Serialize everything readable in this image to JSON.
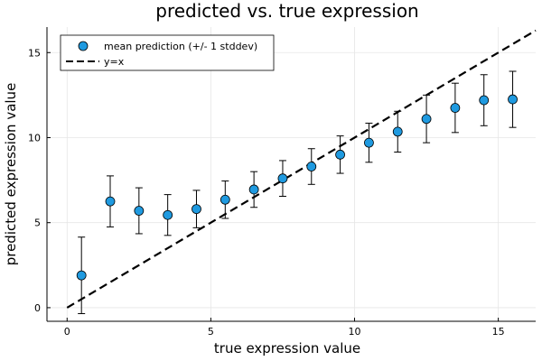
{
  "chart_data": {
    "type": "scatter",
    "title": "predicted vs. true expression",
    "xlabel": "true expression value",
    "ylabel": "predicted expression value",
    "xlim": [
      -0.7,
      16.3
    ],
    "ylim": [
      -0.8,
      16.5
    ],
    "xticks": [
      "0",
      "5",
      "10",
      "15"
    ],
    "yticks": [
      "0",
      "5",
      "10",
      "15"
    ],
    "grid": true,
    "legend_position": "top-left",
    "colors": {
      "points": "#1f9ae0",
      "reference_line": "#000000"
    },
    "series": [
      {
        "name": "mean prediction (+/- 1 stddev)",
        "kind": "scatter-errorbar",
        "x": [
          0.5,
          1.5,
          2.5,
          3.5,
          4.5,
          5.5,
          6.5,
          7.5,
          8.5,
          9.5,
          10.5,
          11.5,
          12.5,
          13.5,
          14.5,
          15.5
        ],
        "y": [
          1.9,
          6.25,
          5.7,
          5.45,
          5.8,
          6.35,
          6.95,
          7.6,
          8.3,
          9.0,
          9.7,
          10.35,
          11.1,
          11.75,
          12.2,
          12.25
        ],
        "err": [
          2.25,
          1.5,
          1.35,
          1.2,
          1.1,
          1.1,
          1.05,
          1.05,
          1.05,
          1.1,
          1.15,
          1.2,
          1.4,
          1.45,
          1.5,
          1.65
        ]
      },
      {
        "name": "y=x",
        "kind": "dashed-line",
        "x": [
          0,
          16.3
        ],
        "y": [
          0,
          16.3
        ]
      }
    ]
  }
}
